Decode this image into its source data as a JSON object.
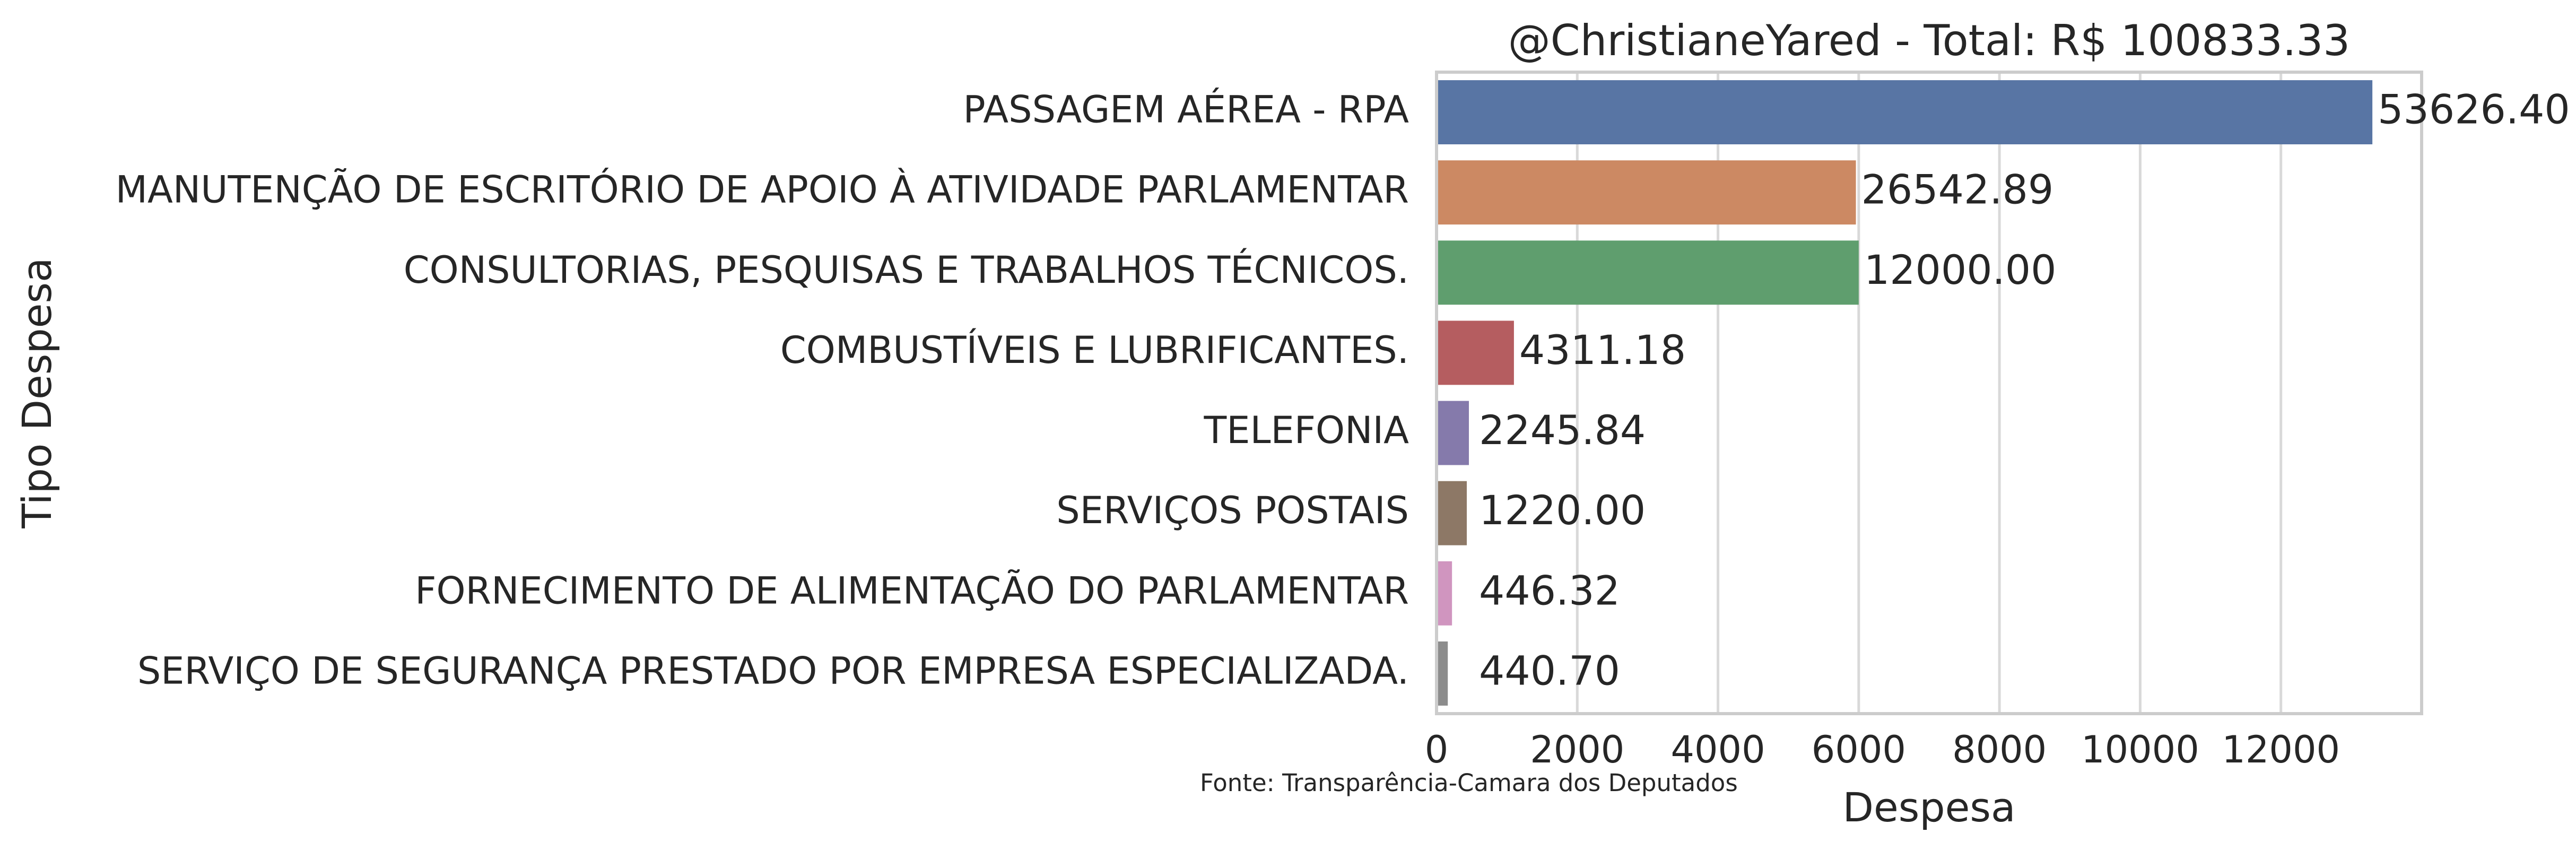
{
  "chart_data": {
    "type": "bar",
    "orientation": "horizontal",
    "title": "@ChristianeYared - Total: R$ 100833.33",
    "xlabel": "Despesa",
    "ylabel": "Tipo Despesa",
    "categories": [
      "PASSAGEM AÉREA - RPA",
      "MANUTENÇÃO DE ESCRITÓRIO DE APOIO À ATIVIDADE PARLAMENTAR",
      "CONSULTORIAS, PESQUISAS E TRABALHOS TÉCNICOS.",
      "COMBUSTÍVEIS E LUBRIFICANTES.",
      "TELEFONIA",
      "SERVIÇOS POSTAIS",
      "FORNECIMENTO DE ALIMENTAÇÃO DO PARLAMENTAR",
      "SERVIÇO DE SEGURANÇA PRESTADO POR EMPRESA ESPECIALIZADA."
    ],
    "values": [
      13300,
      5960,
      6000,
      1100,
      460,
      430,
      220,
      160
    ],
    "data_labels": [
      "53626.40",
      "26542.89",
      "12000.00",
      "4311.18",
      "2245.84",
      "1220.00",
      "446.32",
      "440.70"
    ],
    "colors": [
      "#5875a4",
      "#cc8963",
      "#5f9e6e",
      "#b55d60",
      "#857aab",
      "#8d7866",
      "#d095bf",
      "#8c8c8c"
    ],
    "xlim": [
      0,
      14000
    ],
    "xticks": [
      0,
      2000,
      4000,
      6000,
      8000,
      10000,
      12000
    ],
    "xtick_labels": [
      "0",
      "2000",
      "4000",
      "6000",
      "8000",
      "10000",
      "12000"
    ],
    "grid": "vertical",
    "source_note": "Fonte: Transparência-Camara dos Deputados"
  }
}
